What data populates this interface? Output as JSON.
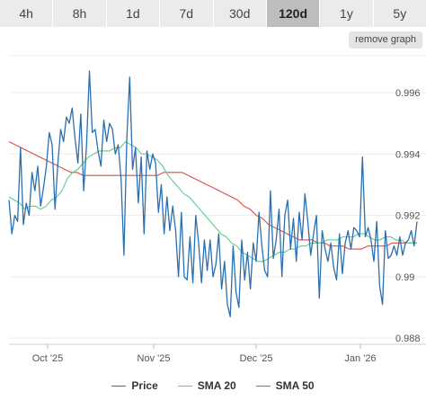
{
  "range_tabs": [
    {
      "label": "4h",
      "active": false
    },
    {
      "label": "8h",
      "active": false
    },
    {
      "label": "1d",
      "active": false
    },
    {
      "label": "7d",
      "active": false
    },
    {
      "label": "30d",
      "active": false
    },
    {
      "label": "120d",
      "active": true
    },
    {
      "label": "1y",
      "active": false
    },
    {
      "label": "5y",
      "active": false
    }
  ],
  "remove_graph_label": "remove graph",
  "chart_data": {
    "type": "line",
    "x_ticks": [
      "Oct '25",
      "Nov '25",
      "Dec '25",
      "Jan '26"
    ],
    "y_ticks": [
      "0.988",
      "0.99",
      "0.992",
      "0.994",
      "0.996"
    ],
    "ylim": [
      0.9878,
      0.9972
    ],
    "y_axis_position": "right",
    "grid": "horizontal",
    "legend_position": "bottom-center",
    "series": [
      {
        "name": "Price",
        "color": "#2a6fb0",
        "values": [
          0.9925,
          0.9914,
          0.992,
          0.9918,
          0.9942,
          0.9917,
          0.9924,
          0.992,
          0.9934,
          0.9928,
          0.9936,
          0.9923,
          0.9929,
          0.9936,
          0.9947,
          0.9943,
          0.9922,
          0.9937,
          0.9948,
          0.9944,
          0.9952,
          0.995,
          0.9955,
          0.9945,
          0.9937,
          0.9953,
          0.9928,
          0.9943,
          0.9967,
          0.9947,
          0.9948,
          0.9941,
          0.9936,
          0.9951,
          0.9944,
          0.995,
          0.9948,
          0.994,
          0.9943,
          0.9932,
          0.9907,
          0.9945,
          0.9965,
          0.9935,
          0.9942,
          0.9924,
          0.9939,
          0.9914,
          0.9941,
          0.9935,
          0.994,
          0.9937,
          0.9921,
          0.993,
          0.9914,
          0.9926,
          0.9915,
          0.9923,
          0.9915,
          0.99,
          0.9921,
          0.99,
          0.9899,
          0.9913,
          0.9898,
          0.992,
          0.9911,
          0.9898,
          0.9912,
          0.9902,
          0.9912,
          0.99,
          0.9904,
          0.9914,
          0.9896,
          0.9905,
          0.9891,
          0.9887,
          0.991,
          0.9895,
          0.989,
          0.9912,
          0.9899,
          0.9908,
          0.9896,
          0.9911,
          0.9905,
          0.9921,
          0.991,
          0.9902,
          0.99,
          0.9928,
          0.9906,
          0.9912,
          0.9922,
          0.99,
          0.992,
          0.9925,
          0.9909,
          0.9919,
          0.9905,
          0.9921,
          0.9912,
          0.9927,
          0.9918,
          0.9907,
          0.9914,
          0.992,
          0.9893,
          0.9915,
          0.9909,
          0.9905,
          0.9911,
          0.9903,
          0.9899,
          0.9914,
          0.9901,
          0.9911,
          0.9915,
          0.9909,
          0.9916,
          0.9915,
          0.9913,
          0.9939,
          0.9913,
          0.9916,
          0.9912,
          0.9905,
          0.9918,
          0.9897,
          0.9891,
          0.9915,
          0.9906,
          0.9907,
          0.991,
          0.9907,
          0.9913,
          0.9907,
          0.9911,
          0.9912,
          0.9915,
          0.991,
          0.9918
        ]
      },
      {
        "name": "SMA 20",
        "color": "#5ccc8a",
        "values": [
          0.9926,
          0.9925,
          0.9924,
          0.9922,
          0.9923,
          0.9923,
          0.9922,
          0.9923,
          0.9925,
          0.9926,
          0.9928,
          0.9932,
          0.9934,
          0.9935,
          0.9937,
          0.9939,
          0.994,
          0.9941,
          0.9941,
          0.9941,
          0.9942,
          0.9942,
          0.9944,
          0.9943,
          0.9942,
          0.994,
          0.994,
          0.9939,
          0.9938,
          0.9936,
          0.9933,
          0.9931,
          0.9929,
          0.9927,
          0.9926,
          0.9924,
          0.9922,
          0.992,
          0.9918,
          0.9916,
          0.9914,
          0.9913,
          0.9911,
          0.991,
          0.9908,
          0.9907,
          0.9906,
          0.9905,
          0.9905,
          0.9906,
          0.9907,
          0.9908,
          0.9908,
          0.9909,
          0.9909,
          0.991,
          0.991,
          0.9911,
          0.9911,
          0.9911,
          0.9912,
          0.9912,
          0.9912,
          0.9913,
          0.9913,
          0.9913,
          0.9914,
          0.9914,
          0.9913,
          0.9912,
          0.9912,
          0.9913,
          0.9913,
          0.9912,
          0.9912,
          0.9911,
          0.9911,
          0.9911
        ]
      },
      {
        "name": "SMA 50",
        "color": "#e04b4b",
        "values": [
          0.9944,
          0.9943,
          0.9942,
          0.9941,
          0.994,
          0.9939,
          0.9938,
          0.9937,
          0.9936,
          0.9935,
          0.9934,
          0.9934,
          0.9933,
          0.9933,
          0.9933,
          0.9933,
          0.9933,
          0.9933,
          0.9933,
          0.9933,
          0.9933,
          0.9933,
          0.9933,
          0.9933,
          0.9933,
          0.9934,
          0.9934,
          0.9934,
          0.9934,
          0.9933,
          0.9932,
          0.9931,
          0.993,
          0.9929,
          0.9928,
          0.9927,
          0.9926,
          0.9925,
          0.9923,
          0.9922,
          0.992,
          0.9919,
          0.9917,
          0.9916,
          0.9915,
          0.9914,
          0.9913,
          0.9912,
          0.9912,
          0.9912,
          0.9911,
          0.9911,
          0.991,
          0.991,
          0.991,
          0.9909,
          0.9909,
          0.9909,
          0.991,
          0.991,
          0.991,
          0.991,
          0.9911,
          0.9911,
          0.9911,
          0.9911,
          0.9911
        ]
      }
    ]
  }
}
